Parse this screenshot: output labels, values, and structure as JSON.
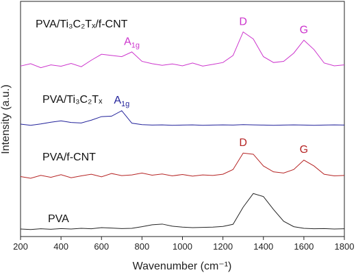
{
  "chart_data": {
    "type": "line",
    "xlabel": "Wavenumber (cm⁻¹)",
    "ylabel": "Intensity (a.u.)",
    "x": [
      200,
      250,
      300,
      350,
      400,
      450,
      500,
      550,
      600,
      650,
      700,
      750,
      800,
      850,
      900,
      950,
      1000,
      1050,
      1100,
      1150,
      1200,
      1250,
      1300,
      1350,
      1400,
      1450,
      1500,
      1550,
      1600,
      1650,
      1700,
      1750,
      1800
    ],
    "xlim": [
      200,
      1800
    ],
    "xticks": [
      200,
      400,
      600,
      800,
      1000,
      1200,
      1400,
      1600,
      1800
    ],
    "ylim": [
      0,
      100
    ],
    "series": [
      {
        "name": "PVA/Ti₃C₂Tₓ/f-CNT",
        "color": "#cc33cc",
        "values": [
          72.5,
          73.5,
          71.8,
          73.0,
          72.4,
          73.6,
          72.2,
          75.0,
          77.5,
          77.0,
          76.5,
          78.5,
          74.5,
          73.5,
          72.8,
          73.4,
          72.6,
          73.8,
          72.5,
          73.2,
          74.0,
          77.0,
          87.0,
          84.0,
          76.5,
          74.0,
          74.5,
          78.0,
          83.5,
          79.5,
          73.8,
          72.6,
          73.0
        ]
      },
      {
        "name": "PVA/Ti₃C₂Tₓ",
        "color": "#1f1f99",
        "values": [
          47.8,
          47.3,
          47.9,
          48.6,
          49.2,
          48.5,
          48.3,
          49.5,
          51.0,
          51.2,
          53.5,
          48.2,
          47.6,
          47.4,
          47.5,
          47.3,
          47.4,
          47.5,
          47.3,
          47.4,
          47.5,
          47.4,
          47.6,
          47.5,
          47.4,
          47.3,
          47.4,
          47.5,
          47.4,
          47.3,
          47.4,
          47.5,
          47.4
        ]
      },
      {
        "name": "PVA/f-CNT",
        "color": "#b52222",
        "values": [
          25.5,
          24.8,
          26.0,
          25.2,
          26.3,
          25.0,
          25.8,
          26.5,
          25.4,
          26.8,
          25.9,
          26.2,
          27.0,
          26.1,
          26.6,
          25.8,
          26.4,
          25.7,
          26.2,
          26.0,
          26.5,
          28.5,
          35.5,
          35.0,
          30.0,
          27.5,
          27.0,
          28.5,
          32.5,
          30.0,
          26.5,
          25.8,
          26.0
        ]
      },
      {
        "name": "PVA",
        "color": "#222222",
        "values": [
          3.2,
          3.0,
          3.3,
          3.1,
          3.4,
          3.2,
          3.5,
          3.3,
          3.8,
          3.6,
          3.4,
          3.5,
          4.2,
          5.0,
          5.3,
          4.4,
          4.0,
          3.8,
          3.9,
          4.0,
          4.3,
          5.2,
          12.5,
          18.3,
          17.0,
          11.5,
          6.5,
          4.2,
          3.5,
          3.3,
          3.4,
          3.2,
          3.3
        ]
      }
    ],
    "annotations": [
      {
        "text": "A",
        "sub": "1g",
        "series": 0,
        "x": 750
      },
      {
        "text": "D",
        "series": 0,
        "x": 1300
      },
      {
        "text": "G",
        "series": 0,
        "x": 1600
      },
      {
        "text": "A",
        "sub": "1g",
        "series": 1,
        "x": 700
      },
      {
        "text": "D",
        "series": 2,
        "x": 1300
      },
      {
        "text": "G",
        "series": 2,
        "x": 1600
      }
    ]
  }
}
